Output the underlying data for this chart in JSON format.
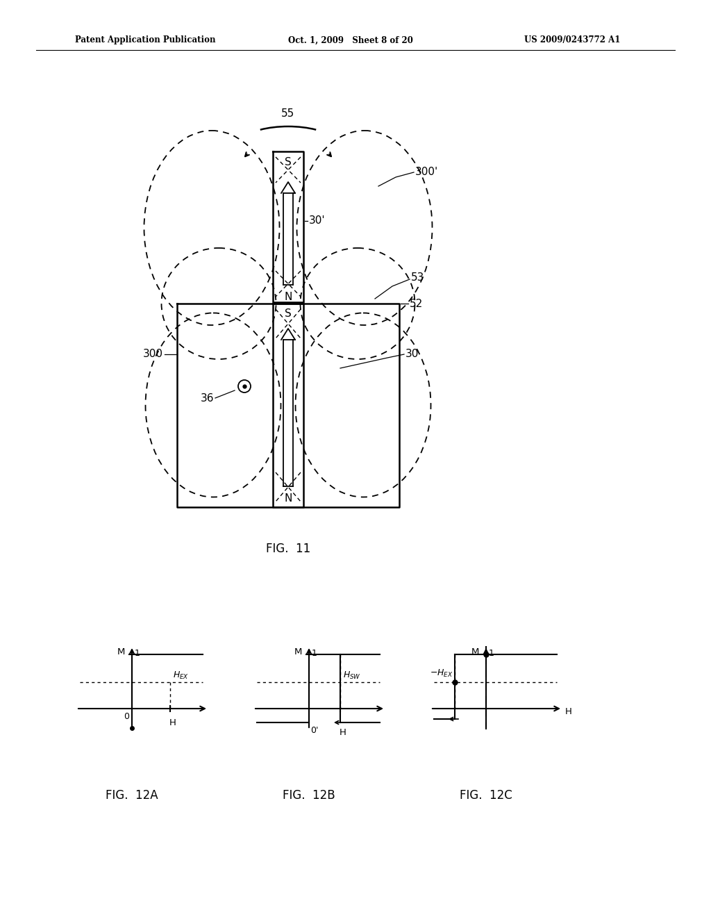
{
  "bg_color": "#ffffff",
  "line_color": "#000000",
  "header_left": "Patent Application Publication",
  "header_mid": "Oct. 1, 2009   Sheet 8 of 20",
  "header_right": "US 2009/0243772 A1",
  "fig11_caption": "FIG.  11",
  "fig12a_caption": "FIG.  12A",
  "fig12b_caption": "FIG.  12B",
  "fig12c_caption": "FIG.  12C"
}
